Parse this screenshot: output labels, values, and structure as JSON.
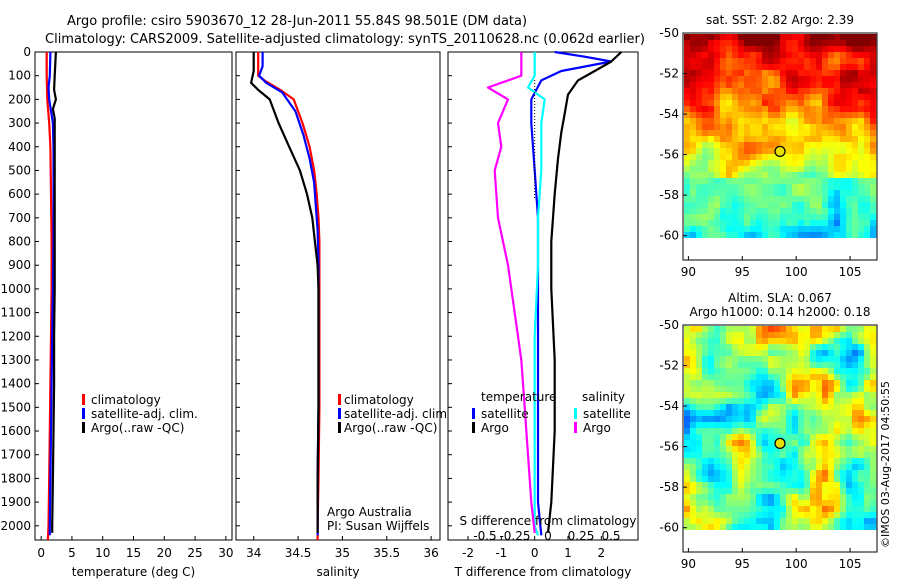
{
  "figure": {
    "title_line1": "Argo profile: csiro 5903670_12 28-Jun-2011 55.84S 98.501E (DM data)",
    "title_line2": "Climatology: CARS2009. Satellite-adjusted climatology: synTS_20110628.nc (0.062d earlier)",
    "credit": "©IMOS 03-Aug-2017 04:50:55",
    "colors": {
      "climatology": "#ff0000",
      "satellite": "#0000ff",
      "argo": "#000000",
      "sal_satellite": "#00ffff",
      "sal_argo": "#ff00ff"
    }
  },
  "chart_data": [
    {
      "type": "line",
      "panel": "temperature",
      "xlabel": "temperature (deg C)",
      "xlim": [
        -1,
        31
      ],
      "xticks": [
        0,
        5,
        10,
        15,
        20,
        25,
        30
      ],
      "ylim": [
        2060,
        0
      ],
      "yticks": [
        0,
        100,
        200,
        300,
        400,
        500,
        600,
        700,
        800,
        900,
        1000,
        1100,
        1200,
        1300,
        1400,
        1500,
        1600,
        1700,
        1800,
        1900,
        2000
      ],
      "legend": [
        "climatology",
        "satellite-adj. clim.",
        "Argo(..raw -QC)"
      ],
      "series": [
        {
          "name": "climatology",
          "color": "#ff0000",
          "points": [
            [
              0.9,
              0
            ],
            [
              0.9,
              100
            ],
            [
              1.0,
              200
            ],
            [
              1.3,
              300
            ],
            [
              1.5,
              400
            ],
            [
              1.6,
              600
            ],
            [
              1.7,
              800
            ],
            [
              1.7,
              1000
            ],
            [
              1.6,
              1200
            ],
            [
              1.5,
              1400
            ],
            [
              1.4,
              1600
            ],
            [
              1.3,
              1800
            ],
            [
              1.2,
              2000
            ],
            [
              1.1,
              2060
            ]
          ]
        },
        {
          "name": "satellite-adj. clim.",
          "color": "#0000ff",
          "points": [
            [
              1.5,
              0
            ],
            [
              1.4,
              100
            ],
            [
              1.2,
              150
            ],
            [
              1.3,
              200
            ],
            [
              1.9,
              300
            ],
            [
              2.0,
              400
            ],
            [
              2.0,
              600
            ],
            [
              2.0,
              800
            ],
            [
              1.9,
              1000
            ],
            [
              1.8,
              1200
            ],
            [
              1.7,
              1400
            ],
            [
              1.6,
              1600
            ],
            [
              1.5,
              1800
            ],
            [
              1.4,
              2000
            ],
            [
              1.4,
              2040
            ]
          ]
        },
        {
          "name": "Argo(..raw -QC)",
          "color": "#000000",
          "points": [
            [
              2.4,
              0
            ],
            [
              2.3,
              50
            ],
            [
              2.2,
              100
            ],
            [
              2.1,
              160
            ],
            [
              2.4,
              200
            ],
            [
              1.9,
              240
            ],
            [
              2.2,
              280
            ],
            [
              2.2,
              400
            ],
            [
              2.2,
              600
            ],
            [
              2.2,
              800
            ],
            [
              2.2,
              1000
            ],
            [
              2.1,
              1200
            ],
            [
              2.1,
              1400
            ],
            [
              2.0,
              1600
            ],
            [
              1.9,
              1800
            ],
            [
              1.8,
              2000
            ],
            [
              1.8,
              2030
            ]
          ]
        }
      ]
    },
    {
      "type": "line",
      "panel": "salinity",
      "xlabel": "salinity",
      "xlim": [
        33.8,
        36.1
      ],
      "xticks": [
        34,
        34.5,
        35,
        35.5,
        36
      ],
      "xticklabels": [
        "34",
        "34.5",
        "35",
        "35.5",
        "36"
      ],
      "ylim": [
        2060,
        0
      ],
      "legend": [
        "climatology",
        "satellite-adj. clim.",
        "Argo(..raw -QC)"
      ],
      "annotation": [
        "Argo Australia",
        "PI: Susan Wijffels"
      ],
      "series": [
        {
          "name": "climatology",
          "color": "#ff0000",
          "points": [
            [
              34.05,
              0
            ],
            [
              34.05,
              100
            ],
            [
              34.12,
              120
            ],
            [
              34.3,
              160
            ],
            [
              34.45,
              200
            ],
            [
              34.55,
              300
            ],
            [
              34.63,
              400
            ],
            [
              34.68,
              500
            ],
            [
              34.71,
              600
            ],
            [
              34.73,
              700
            ],
            [
              34.74,
              800
            ],
            [
              34.74,
              1000
            ],
            [
              34.74,
              1200
            ],
            [
              34.74,
              1500
            ],
            [
              34.73,
              1800
            ],
            [
              34.72,
              2000
            ],
            [
              34.72,
              2060
            ]
          ]
        },
        {
          "name": "satellite-adj. clim.",
          "color": "#0000ff",
          "points": [
            [
              34.1,
              0
            ],
            [
              34.1,
              60
            ],
            [
              34.06,
              100
            ],
            [
              34.14,
              130
            ],
            [
              34.32,
              170
            ],
            [
              34.47,
              250
            ],
            [
              34.56,
              350
            ],
            [
              34.63,
              450
            ],
            [
              34.68,
              550
            ],
            [
              34.7,
              650
            ],
            [
              34.72,
              750
            ],
            [
              34.73,
              900
            ],
            [
              34.73,
              1200
            ],
            [
              34.73,
              1500
            ],
            [
              34.72,
              1800
            ],
            [
              34.72,
              2000
            ],
            [
              34.72,
              2040
            ]
          ]
        },
        {
          "name": "Argo(..raw -QC)",
          "color": "#000000",
          "points": [
            [
              34.0,
              0
            ],
            [
              34.0,
              80
            ],
            [
              33.97,
              130
            ],
            [
              34.05,
              160
            ],
            [
              34.18,
              200
            ],
            [
              34.28,
              300
            ],
            [
              34.4,
              400
            ],
            [
              34.52,
              500
            ],
            [
              34.6,
              600
            ],
            [
              34.66,
              700
            ],
            [
              34.69,
              800
            ],
            [
              34.72,
              900
            ],
            [
              34.73,
              1000
            ],
            [
              34.73,
              1200
            ],
            [
              34.73,
              1500
            ],
            [
              34.72,
              1800
            ],
            [
              34.72,
              2000
            ],
            [
              34.72,
              2030
            ]
          ]
        }
      ]
    },
    {
      "type": "line",
      "panel": "differences",
      "xlabel": "T difference from climatology",
      "xlim": [
        -2.6,
        3.1
      ],
      "xticks": [
        -2,
        -1,
        0,
        1,
        2
      ],
      "secondary_xlabel": "S difference from climatology",
      "secondary_xticks": [
        "-0.5",
        "-0.25",
        "0",
        "0.25",
        "0.5"
      ],
      "ylim": [
        2060,
        0
      ],
      "legend_headers": [
        "temperature",
        "salinity"
      ],
      "legend": [
        "satellite",
        "Argo",
        "satellite",
        "Argo"
      ],
      "series": [
        {
          "name": "satellite",
          "group": "temperature",
          "color": "#0000ff",
          "points": [
            [
              0.6,
              0
            ],
            [
              1.5,
              20
            ],
            [
              2.3,
              40
            ],
            [
              0.8,
              80
            ],
            [
              0.2,
              120
            ],
            [
              -0.1,
              200
            ],
            [
              -0.1,
              300
            ],
            [
              0.0,
              500
            ],
            [
              0.1,
              700
            ],
            [
              0.1,
              1000
            ],
            [
              0.1,
              1300
            ],
            [
              0.1,
              1600
            ],
            [
              0.1,
              1900
            ],
            [
              0.2,
              2040
            ]
          ]
        },
        {
          "name": "Argo",
          "group": "temperature",
          "color": "#000000",
          "points": [
            [
              2.6,
              0
            ],
            [
              2.3,
              40
            ],
            [
              1.8,
              80
            ],
            [
              1.3,
              120
            ],
            [
              1.0,
              180
            ],
            [
              0.9,
              260
            ],
            [
              0.8,
              340
            ],
            [
              0.7,
              450
            ],
            [
              0.6,
              600
            ],
            [
              0.5,
              800
            ],
            [
              0.5,
              1000
            ],
            [
              0.6,
              1300
            ],
            [
              0.6,
              1600
            ],
            [
              0.5,
              1900
            ],
            [
              0.4,
              2030
            ]
          ]
        },
        {
          "name": "satellite",
          "group": "salinity",
          "color": "#00ffff",
          "points": [
            [
              0.0,
              0
            ],
            [
              0.0,
              100
            ],
            [
              -0.2,
              150
            ],
            [
              0.3,
              200
            ],
            [
              0.2,
              300
            ],
            [
              0.2,
              500
            ],
            [
              0.1,
              700
            ],
            [
              0.1,
              900
            ],
            [
              0.0,
              1200
            ],
            [
              0.0,
              1500
            ],
            [
              0.0,
              1800
            ],
            [
              0.0,
              2000
            ],
            [
              0.1,
              2040
            ]
          ]
        },
        {
          "name": "Argo",
          "group": "salinity",
          "color": "#ff00ff",
          "points": [
            [
              -0.4,
              0
            ],
            [
              -0.4,
              100
            ],
            [
              -1.4,
              150
            ],
            [
              -0.8,
              200
            ],
            [
              -1.1,
              300
            ],
            [
              -1.0,
              400
            ],
            [
              -1.2,
              500
            ],
            [
              -1.1,
              700
            ],
            [
              -0.8,
              900
            ],
            [
              -0.6,
              1100
            ],
            [
              -0.4,
              1300
            ],
            [
              -0.3,
              1500
            ],
            [
              -0.2,
              1700
            ],
            [
              -0.1,
              1900
            ],
            [
              0.0,
              2030
            ]
          ]
        }
      ]
    },
    {
      "type": "heatmap",
      "panel": "sst_map",
      "title": "sat. SST: 2.82  Argo: 2.39",
      "xlim": [
        89.5,
        107.5
      ],
      "ylim": [
        -61.2,
        -50
      ],
      "xticks": [
        90,
        95,
        100,
        105
      ],
      "yticks": [
        -50,
        -52,
        -54,
        -56,
        -58,
        -60
      ],
      "marker": {
        "lon": 98.501,
        "lat": -55.84
      }
    },
    {
      "type": "heatmap",
      "panel": "sla_map",
      "title_line1": "Altim. SLA: 0.067",
      "title_line2": "Argo h1000: 0.14  h2000: 0.18",
      "xlim": [
        89.5,
        107.5
      ],
      "ylim": [
        -61.2,
        -50
      ],
      "xticks": [
        90,
        95,
        100,
        105
      ],
      "yticks": [
        -50,
        -52,
        -54,
        -56,
        -58,
        -60
      ],
      "marker": {
        "lon": 98.501,
        "lat": -55.84
      }
    }
  ]
}
